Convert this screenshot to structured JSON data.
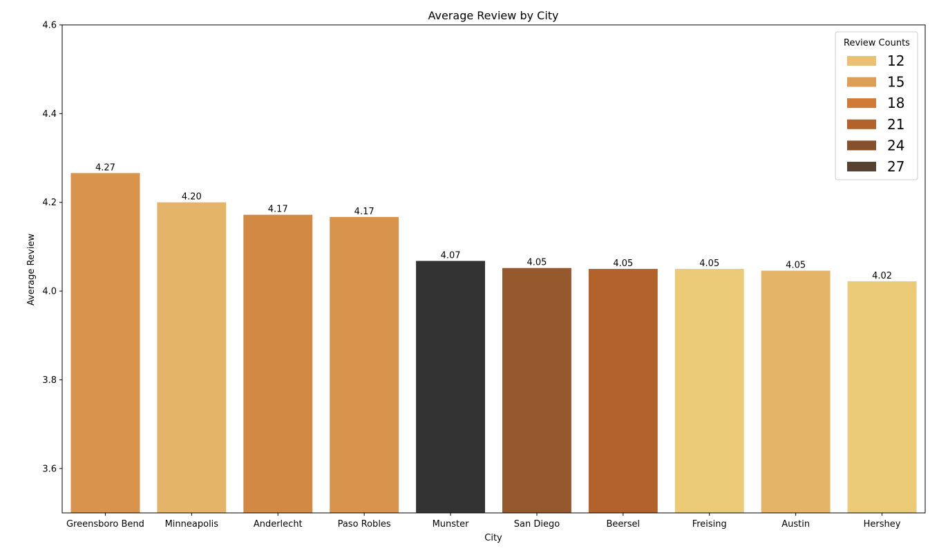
{
  "chart_data": {
    "type": "bar",
    "title": "Average Review by City",
    "xlabel": "City",
    "ylabel": "Average Review",
    "ylim": [
      3.5,
      4.6
    ],
    "yticks": [
      3.6,
      3.8,
      4.0,
      4.2,
      4.4,
      4.6
    ],
    "grid": false,
    "legend": {
      "title": "Review Counts",
      "placement": "top-right",
      "entries": [
        {
          "label": "12",
          "color": "#ebc072"
        },
        {
          "label": "15",
          "color": "#dd9f55"
        },
        {
          "label": "18",
          "color": "#cf7b37"
        },
        {
          "label": "21",
          "color": "#b3622b"
        },
        {
          "label": "24",
          "color": "#85502b"
        },
        {
          "label": "27",
          "color": "#574130"
        }
      ]
    },
    "categories": [
      "Greensboro Bend",
      "Minneapolis",
      "Anderlecht",
      "Paso Robles",
      "Munster",
      "San Diego",
      "Beersel",
      "Freising",
      "Austin",
      "Hershey"
    ],
    "values": [
      4.266,
      4.2,
      4.172,
      4.167,
      4.068,
      4.052,
      4.05,
      4.05,
      4.046,
      4.022
    ],
    "value_labels": [
      "4.27",
      "4.20",
      "4.17",
      "4.17",
      "4.07",
      "4.05",
      "4.05",
      "4.05",
      "4.05",
      "4.02"
    ],
    "bar_colors": [
      "#d8944d",
      "#e4b468",
      "#d28943",
      "#d8944d",
      "#333333",
      "#96592e",
      "#b3622b",
      "#ebca78",
      "#e4b468",
      "#ebca78"
    ]
  }
}
